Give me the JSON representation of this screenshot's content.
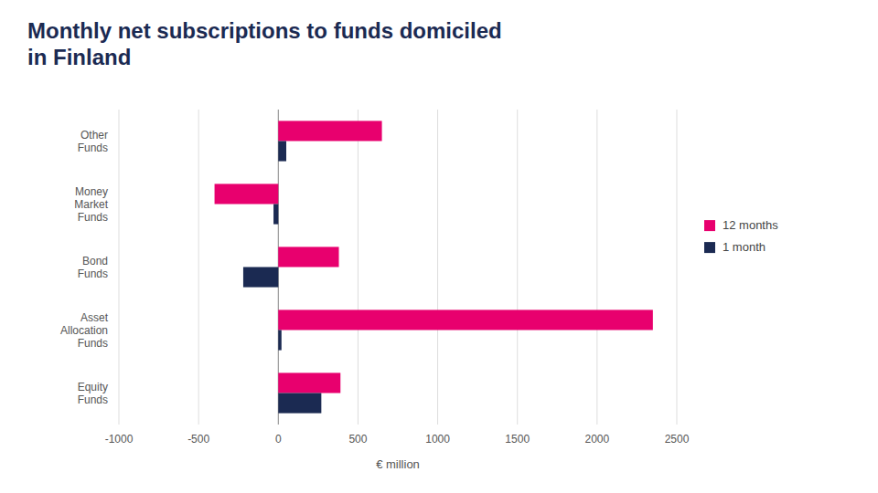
{
  "chart_data": {
    "type": "bar",
    "orientation": "horizontal",
    "title": "Monthly net subscriptions to funds domiciled\nin Finland",
    "categories": [
      "Equity\nFunds",
      "Asset\nAllocation\nFunds",
      "Bond\nFunds",
      "Money\nMarket\nFunds",
      "Other\nFunds"
    ],
    "series": [
      {
        "name": "12 months",
        "color": "#E8006E",
        "values": [
          390,
          2350,
          380,
          -400,
          650
        ]
      },
      {
        "name": "1 month",
        "color": "#1B2A52",
        "values": [
          270,
          20,
          -220,
          -30,
          50
        ]
      }
    ],
    "xlim": [
      -1000,
      2500
    ],
    "xticks": [
      -1000,
      -500,
      0,
      500,
      1000,
      1500,
      2000,
      2500
    ],
    "x_label": "€ million",
    "grid": true,
    "legend": "right"
  }
}
